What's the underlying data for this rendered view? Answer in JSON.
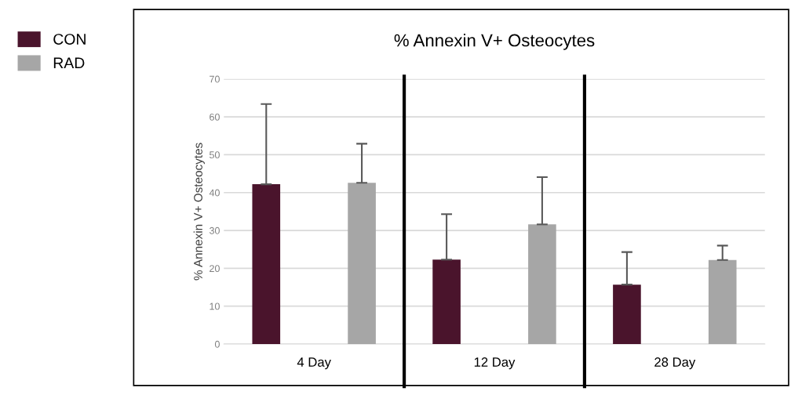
{
  "chart_data": {
    "type": "bar",
    "title": "% Annexin V+ Osteocytes",
    "ylabel": "% Annexin V+ Osteocytes",
    "categories": [
      "4 Day",
      "12 Day",
      "28 Day"
    ],
    "series": [
      {
        "name": "CON",
        "color": "#4a142c",
        "values": [
          42.2,
          22.3,
          15.7
        ],
        "errors": [
          [
            42.2,
            63.4
          ],
          [
            22.3,
            34.3
          ],
          [
            15.7,
            24.3
          ]
        ]
      },
      {
        "name": "RAD",
        "color": "#a6a6a6",
        "values": [
          42.6,
          31.6,
          22.2
        ],
        "errors": [
          [
            42.6,
            52.9
          ],
          [
            31.6,
            44.1
          ],
          [
            22.2,
            26.0
          ]
        ]
      }
    ],
    "ylim": [
      0,
      70
    ],
    "yticks": [
      0,
      10,
      20,
      30,
      40,
      50,
      60,
      70
    ],
    "grid": "y",
    "legend": "left"
  }
}
